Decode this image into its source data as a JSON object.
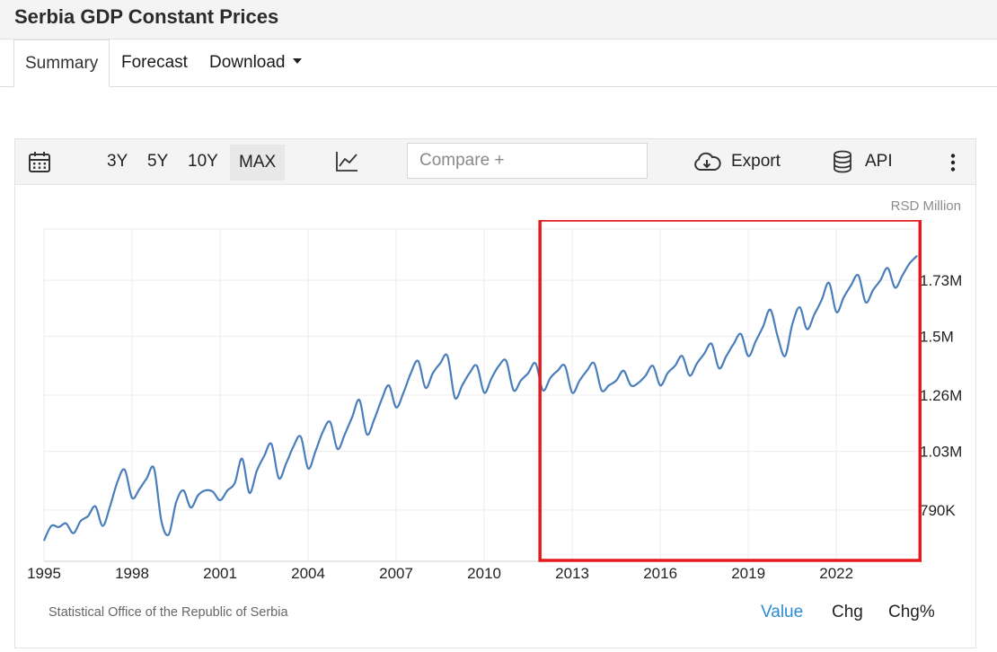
{
  "page": {
    "title": "Serbia GDP Constant Prices"
  },
  "tabs": [
    {
      "label": "Summary",
      "active": true
    },
    {
      "label": "Forecast",
      "active": false
    },
    {
      "label": "Download",
      "active": false
    }
  ],
  "toolbar": {
    "ranges": [
      "3Y",
      "5Y",
      "10Y",
      "MAX"
    ],
    "selected_range": "MAX",
    "compare_placeholder": "Compare +",
    "export_label": "Export",
    "api_label": "API"
  },
  "chart_data": {
    "type": "line",
    "unit_label": "RSD Million",
    "x_tick_labels": [
      "1995",
      "1998",
      "2001",
      "2004",
      "2007",
      "2010",
      "2013",
      "2016",
      "2019",
      "2022"
    ],
    "y_tick_labels": [
      "790K",
      "1.03M",
      "1.26M",
      "1.5M",
      "1.73M"
    ],
    "y_ticks": [
      790000,
      1030000,
      1260000,
      1500000,
      1730000
    ],
    "ylim": [
      580000,
      1940000
    ],
    "xlim": [
      1995.0,
      2024.75
    ],
    "grid": true,
    "series": [
      {
        "color": "#4a7ebb",
        "x": [
          1995.0,
          1995.25,
          1995.5,
          1995.75,
          1996.0,
          1996.25,
          1996.5,
          1996.75,
          1997.0,
          1997.25,
          1997.5,
          1997.75,
          1998.0,
          1998.25,
          1998.5,
          1998.75,
          1999.0,
          1999.25,
          1999.5,
          1999.75,
          2000.0,
          2000.25,
          2000.5,
          2000.75,
          2001.0,
          2001.25,
          2001.5,
          2001.75,
          2002.0,
          2002.25,
          2002.5,
          2002.75,
          2003.0,
          2003.25,
          2003.5,
          2003.75,
          2004.0,
          2004.25,
          2004.5,
          2004.75,
          2005.0,
          2005.25,
          2005.5,
          2005.75,
          2006.0,
          2006.25,
          2006.5,
          2006.75,
          2007.0,
          2007.25,
          2007.5,
          2007.75,
          2008.0,
          2008.25,
          2008.5,
          2008.75,
          2009.0,
          2009.25,
          2009.5,
          2009.75,
          2010.0,
          2010.25,
          2010.5,
          2010.75,
          2011.0,
          2011.25,
          2011.5,
          2011.75,
          2012.0,
          2012.25,
          2012.5,
          2012.75,
          2013.0,
          2013.25,
          2013.5,
          2013.75,
          2014.0,
          2014.25,
          2014.5,
          2014.75,
          2015.0,
          2015.25,
          2015.5,
          2015.75,
          2016.0,
          2016.25,
          2016.5,
          2016.75,
          2017.0,
          2017.25,
          2017.5,
          2017.75,
          2018.0,
          2018.25,
          2018.5,
          2018.75,
          2019.0,
          2019.25,
          2019.5,
          2019.75,
          2020.0,
          2020.25,
          2020.5,
          2020.75,
          2021.0,
          2021.25,
          2021.5,
          2021.75,
          2022.0,
          2022.25,
          2022.5,
          2022.75,
          2023.0,
          2023.25,
          2023.5,
          2023.75,
          2024.0,
          2024.25,
          2024.5,
          2024.75
        ],
        "values": [
          665000,
          725000,
          720000,
          735000,
          695000,
          745000,
          765000,
          805000,
          725000,
          805000,
          905000,
          955000,
          840000,
          875000,
          920000,
          960000,
          745000,
          690000,
          820000,
          870000,
          800000,
          850000,
          870000,
          865000,
          830000,
          870000,
          900000,
          1000000,
          860000,
          950000,
          1010000,
          1060000,
          920000,
          980000,
          1050000,
          1090000,
          960000,
          1030000,
          1110000,
          1150000,
          1040000,
          1100000,
          1170000,
          1240000,
          1100000,
          1160000,
          1240000,
          1300000,
          1210000,
          1270000,
          1350000,
          1400000,
          1290000,
          1350000,
          1390000,
          1420000,
          1250000,
          1300000,
          1350000,
          1380000,
          1270000,
          1330000,
          1380000,
          1400000,
          1280000,
          1320000,
          1350000,
          1390000,
          1280000,
          1330000,
          1360000,
          1380000,
          1270000,
          1320000,
          1360000,
          1390000,
          1280000,
          1300000,
          1320000,
          1360000,
          1300000,
          1310000,
          1340000,
          1380000,
          1300000,
          1350000,
          1380000,
          1420000,
          1340000,
          1390000,
          1430000,
          1470000,
          1370000,
          1420000,
          1470000,
          1510000,
          1420000,
          1480000,
          1540000,
          1610000,
          1500000,
          1420000,
          1550000,
          1620000,
          1530000,
          1590000,
          1650000,
          1720000,
          1600000,
          1660000,
          1710000,
          1750000,
          1640000,
          1690000,
          1730000,
          1780000,
          1700000,
          1750000,
          1800000,
          1830000
        ]
      }
    ],
    "highlight_box": {
      "color": "#e41a1c",
      "x_from": 2011.9,
      "x_to": 2024.85
    },
    "source": "Statistical Office of the Republic of Serbia",
    "modes": [
      "Value",
      "Chg",
      "Chg%"
    ],
    "active_mode": "Value"
  }
}
